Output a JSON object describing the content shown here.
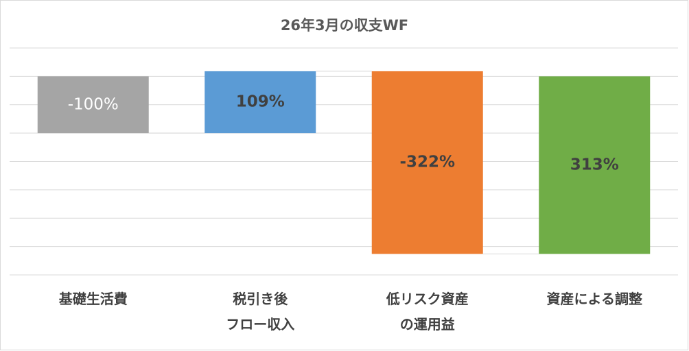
{
  "chart_data": {
    "type": "waterfall",
    "title": "26年3月の収支WF",
    "categories": [
      "基礎生活費",
      "税引き後\nフロー収入",
      "低リスク資産\nの運用益",
      "資産による調整"
    ],
    "values": [
      -100,
      109,
      -322,
      313
    ],
    "value_labels": [
      "-100%",
      "109%",
      "-322%",
      "313%"
    ],
    "colors": [
      "#a5a5a5",
      "#5b9bd5",
      "#ed7d31",
      "#70ad47"
    ],
    "ylim": [
      -350,
      50
    ],
    "yticks": [
      -350,
      -300,
      -250,
      -200,
      -150,
      -100,
      -50,
      0,
      50
    ],
    "grid": true
  }
}
